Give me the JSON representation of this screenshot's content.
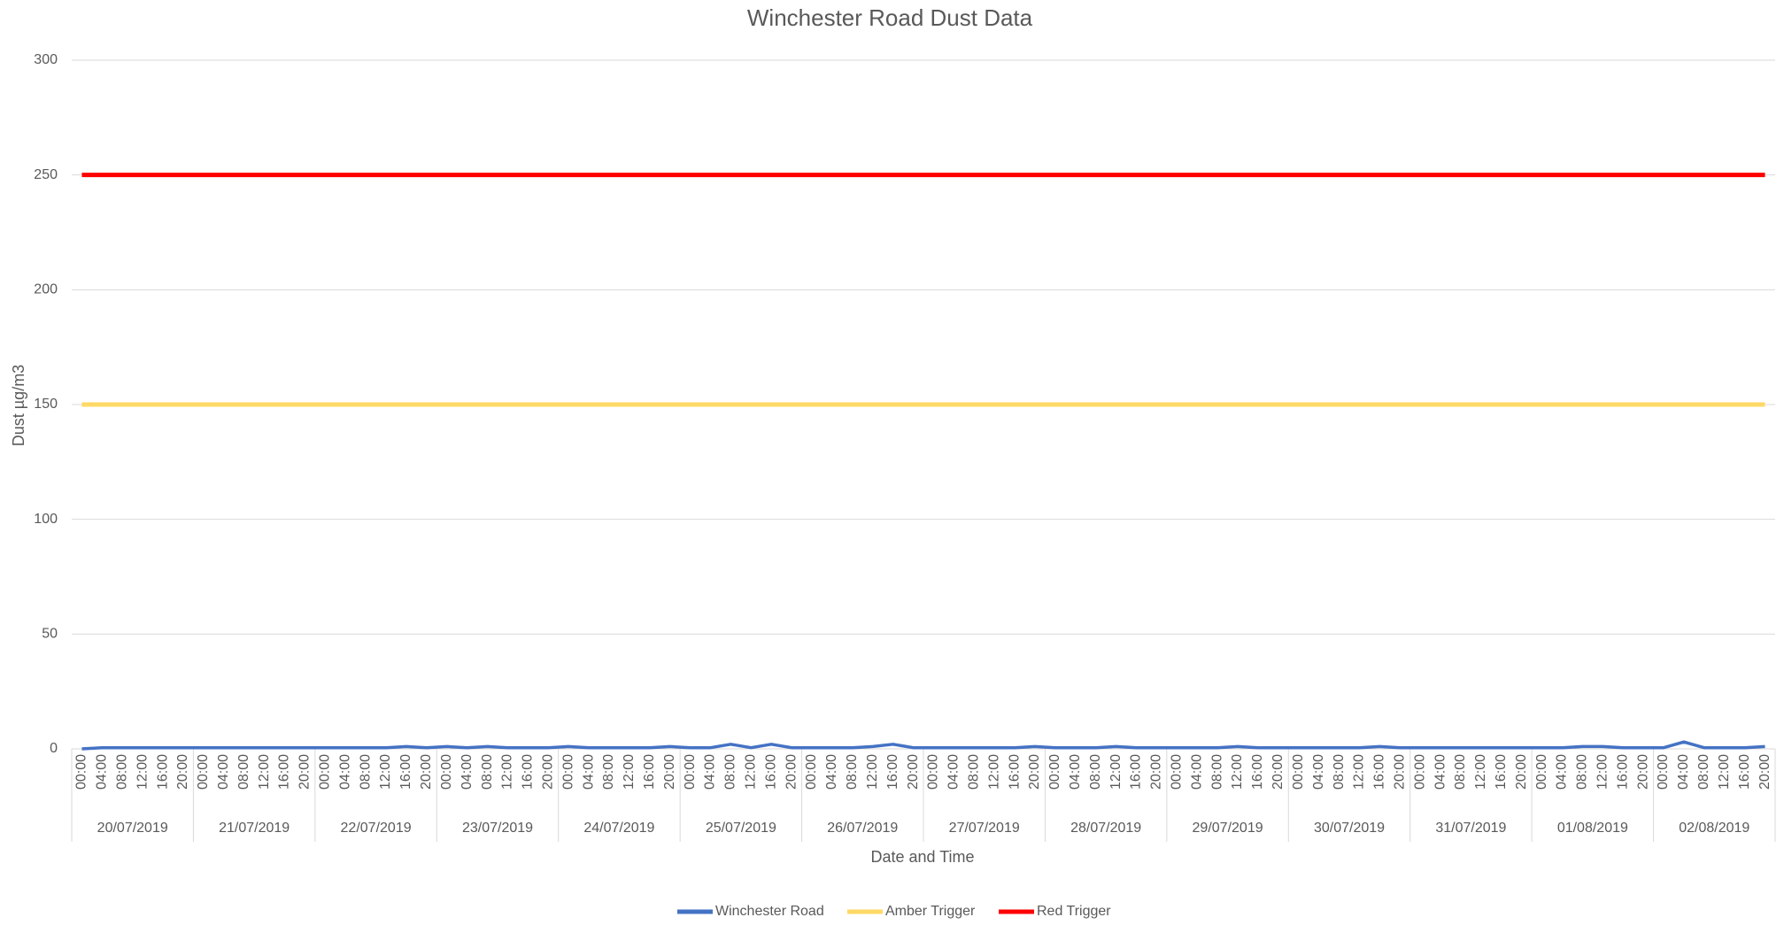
{
  "chart_data": {
    "type": "line",
    "title": "Winchester Road Dust Data",
    "x_label": "Date and Time",
    "y_label": "Dust µg/m3",
    "categories": [
      "00:00",
      "04:00",
      "08:00",
      "12:00",
      "16:00",
      "20:00",
      "00:00",
      "04:00",
      "08:00",
      "12:00",
      "16:00",
      "20:00",
      "00:00",
      "04:00",
      "08:00",
      "12:00",
      "16:00",
      "20:00",
      "00:00",
      "04:00",
      "08:00",
      "12:00",
      "16:00",
      "20:00",
      "00:00",
      "04:00",
      "08:00",
      "12:00",
      "16:00",
      "20:00",
      "00:00",
      "04:00",
      "08:00",
      "12:00",
      "16:00",
      "20:00",
      "00:00",
      "04:00",
      "08:00",
      "12:00",
      "16:00",
      "20:00",
      "00:00",
      "04:00",
      "08:00",
      "12:00",
      "16:00",
      "20:00",
      "00:00",
      "04:00",
      "08:00",
      "12:00",
      "16:00",
      "20:00",
      "00:00",
      "04:00",
      "08:00",
      "12:00",
      "16:00",
      "20:00",
      "00:00",
      "04:00",
      "08:00",
      "12:00",
      "16:00",
      "20:00",
      "00:00",
      "04:00",
      "08:00",
      "12:00",
      "16:00",
      "20:00",
      "00:00",
      "04:00",
      "08:00",
      "12:00",
      "16:00",
      "20:00",
      "00:00",
      "04:00",
      "08:00",
      "12:00",
      "16:00",
      "20:00"
    ],
    "groups": [
      "20/07/2019",
      "21/07/2019",
      "22/07/2019",
      "23/07/2019",
      "24/07/2019",
      "25/07/2019",
      "26/07/2019",
      "27/07/2019",
      "28/07/2019",
      "29/07/2019",
      "30/07/2019",
      "31/07/2019",
      "01/08/2019",
      "02/08/2019"
    ],
    "series": [
      {
        "name": "Winchester Road",
        "color": "#4472c4",
        "values": [
          0,
          0.5,
          0.5,
          0.5,
          0.5,
          0.5,
          0.5,
          0.5,
          0.5,
          0.5,
          0.5,
          0.5,
          0.5,
          0.5,
          0.5,
          0.5,
          1,
          0.5,
          1,
          0.5,
          1,
          0.5,
          0.5,
          0.5,
          1,
          0.5,
          0.5,
          0.5,
          0.5,
          1,
          0.5,
          0.5,
          2,
          0.5,
          2,
          0.5,
          0.5,
          0.5,
          0.5,
          1,
          2,
          0.5,
          0.5,
          0.5,
          0.5,
          0.5,
          0.5,
          1,
          0.5,
          0.5,
          0.5,
          1,
          0.5,
          0.5,
          0.5,
          0.5,
          0.5,
          1,
          0.5,
          0.5,
          0.5,
          0.5,
          0.5,
          0.5,
          1,
          0.5,
          0.5,
          0.5,
          0.5,
          0.5,
          0.5,
          0.5,
          0.5,
          0.5,
          1,
          1,
          0.5,
          0.5,
          0.5,
          3,
          0.5,
          0.5,
          0.5,
          1
        ]
      },
      {
        "name": "Amber Trigger",
        "color": "#ffd966",
        "values": [
          150,
          150,
          150,
          150,
          150,
          150,
          150,
          150,
          150,
          150,
          150,
          150,
          150,
          150,
          150,
          150,
          150,
          150,
          150,
          150,
          150,
          150,
          150,
          150,
          150,
          150,
          150,
          150,
          150,
          150,
          150,
          150,
          150,
          150,
          150,
          150,
          150,
          150,
          150,
          150,
          150,
          150,
          150,
          150,
          150,
          150,
          150,
          150,
          150,
          150,
          150,
          150,
          150,
          150,
          150,
          150,
          150,
          150,
          150,
          150,
          150,
          150,
          150,
          150,
          150,
          150,
          150,
          150,
          150,
          150,
          150,
          150,
          150,
          150,
          150,
          150,
          150,
          150,
          150,
          150,
          150,
          150,
          150,
          150
        ]
      },
      {
        "name": "Red Trigger",
        "color": "#ff0000",
        "values": [
          250,
          250,
          250,
          250,
          250,
          250,
          250,
          250,
          250,
          250,
          250,
          250,
          250,
          250,
          250,
          250,
          250,
          250,
          250,
          250,
          250,
          250,
          250,
          250,
          250,
          250,
          250,
          250,
          250,
          250,
          250,
          250,
          250,
          250,
          250,
          250,
          250,
          250,
          250,
          250,
          250,
          250,
          250,
          250,
          250,
          250,
          250,
          250,
          250,
          250,
          250,
          250,
          250,
          250,
          250,
          250,
          250,
          250,
          250,
          250,
          250,
          250,
          250,
          250,
          250,
          250,
          250,
          250,
          250,
          250,
          250,
          250,
          250,
          250,
          250,
          250,
          250,
          250,
          250,
          250,
          250,
          250,
          250,
          250
        ]
      }
    ],
    "ylim": [
      0,
      300
    ],
    "yticks": [
      0,
      50,
      100,
      150,
      200,
      250,
      300
    ],
    "grid": true,
    "legend": "bottom"
  }
}
